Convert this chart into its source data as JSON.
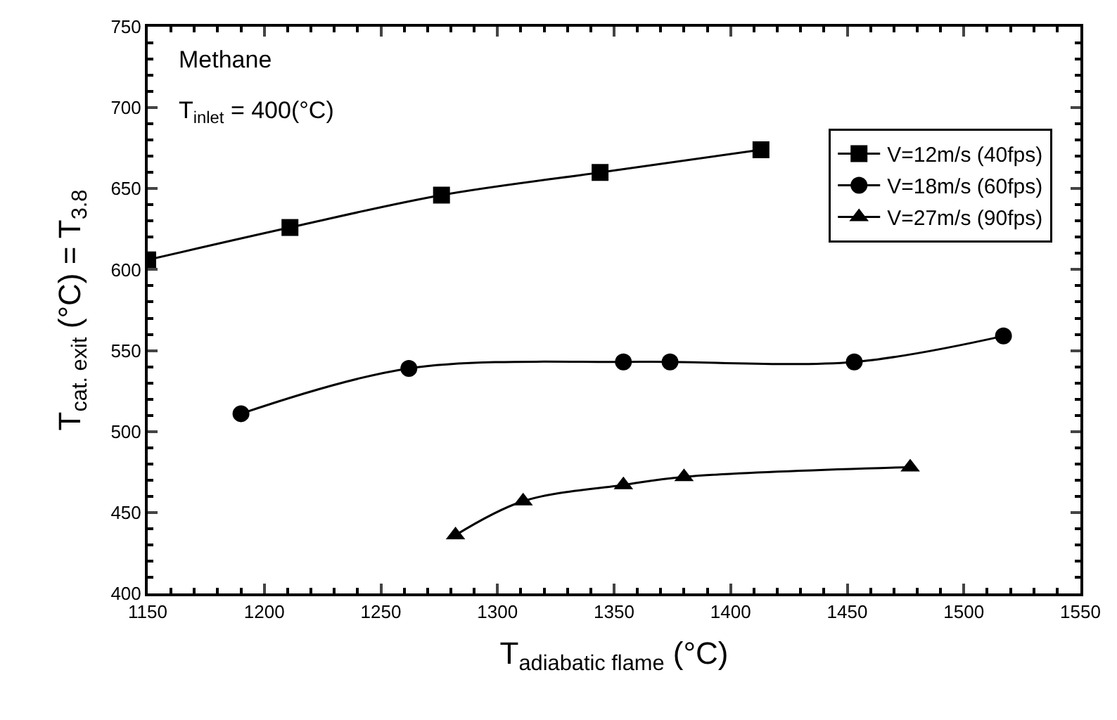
{
  "chart_data": {
    "type": "line",
    "xlabel": "T$_{adiabatic flame}$ (°C)",
    "ylabel": "T$_{cat. exit}$ (°C) = T$_{3.8}$",
    "annotations": [
      "Methane",
      "T$_{inlet}$ = 400(°C)"
    ],
    "xlim": [
      1150,
      1550
    ],
    "xticks": [
      1150,
      1200,
      1250,
      1300,
      1350,
      1400,
      1450,
      1500,
      1550
    ],
    "ylim": [
      400,
      750
    ],
    "yticks": [
      400,
      450,
      500,
      550,
      600,
      650,
      700,
      750
    ],
    "legend": "top right",
    "line_style": "solid",
    "series": [
      {
        "name": "V=12m/s (40fps)",
        "color": "#000000",
        "marker": "square",
        "x": [
          1150,
          1211,
          1276,
          1344,
          1413
        ],
        "values": [
          606,
          626,
          646,
          660,
          674
        ]
      },
      {
        "name": "V=18m/s (60fps)",
        "color": "#000000",
        "marker": "circle",
        "x": [
          1190,
          1262,
          1354,
          1374,
          1453,
          1517
        ],
        "values": [
          511,
          539,
          543,
          543,
          543,
          559
        ]
      },
      {
        "name": "V=27m/s (90fps)",
        "color": "#000000",
        "marker": "triangle",
        "x": [
          1282,
          1311,
          1354,
          1380,
          1477
        ],
        "values": [
          436,
          457,
          467,
          472,
          478
        ]
      }
    ]
  }
}
